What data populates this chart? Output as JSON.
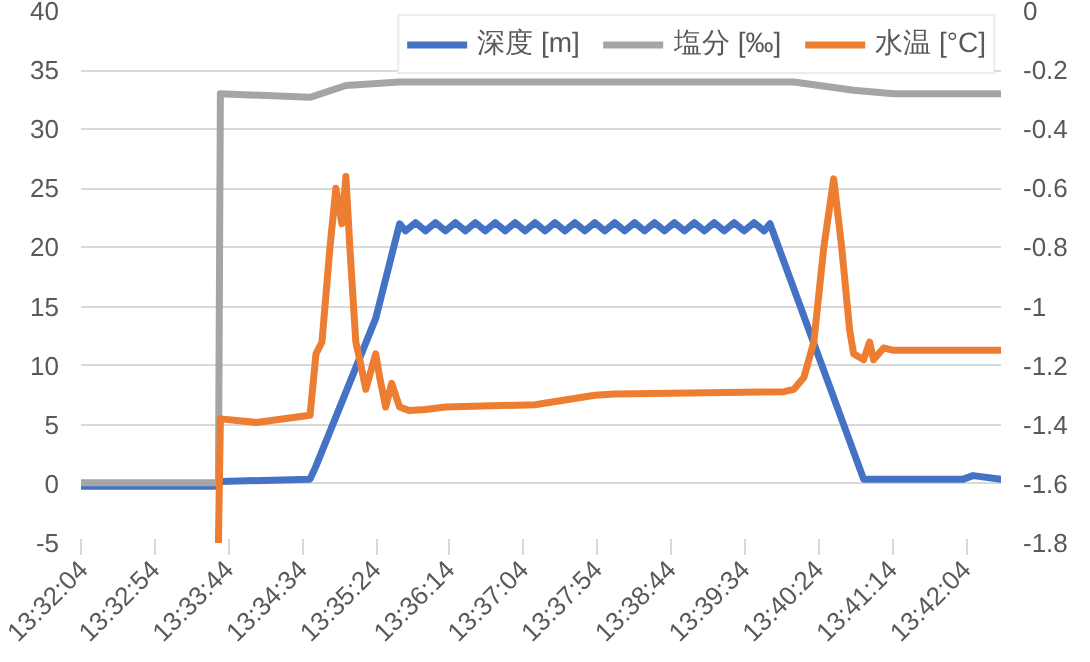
{
  "chart_data": {
    "type": "line",
    "xlim": [
      13.53444,
      13.70769
    ],
    "ylim": [
      -5,
      40
    ],
    "yticks": [
      -5,
      0,
      5,
      10,
      15,
      20,
      25,
      30,
      35,
      40
    ],
    "y2lim": [
      -1.8,
      0
    ],
    "y2ticks": [
      -1.8,
      -1.6,
      -1.4,
      -1.2,
      -1,
      -0.8,
      -0.6,
      -0.4,
      -0.2,
      0
    ],
    "xticks": [
      {
        "value": 13.534444,
        "label": "13:32:04"
      },
      {
        "value": 13.548333,
        "label": "13:32:54"
      },
      {
        "value": 13.562222,
        "label": "13:33:44"
      },
      {
        "value": 13.576111,
        "label": "13:34:34"
      },
      {
        "value": 13.59,
        "label": "13:35:24"
      },
      {
        "value": 13.603889,
        "label": "13:36:14"
      },
      {
        "value": 13.617778,
        "label": "13:37:04"
      },
      {
        "value": 13.631667,
        "label": "13:37:54"
      },
      {
        "value": 13.645556,
        "label": "13:38:44"
      },
      {
        "value": 13.659444,
        "label": "13:39:34"
      },
      {
        "value": 13.673333,
        "label": "13:40:24"
      },
      {
        "value": 13.687222,
        "label": "13:41:14"
      },
      {
        "value": 13.701111,
        "label": "13:42:04"
      }
    ],
    "grid": "y",
    "legend": "top right",
    "line_style": "solid",
    "series": [
      {
        "name": "深度 [m]",
        "color": "#4472c4",
        "x": [
          13.53444,
          13.56032,
          13.56069,
          13.57757,
          13.57869,
          13.58994,
          13.59444,
          13.59557,
          13.59744,
          13.59932,
          13.60119,
          13.60307,
          13.60494,
          13.60682,
          13.60869,
          13.61057,
          13.61244,
          13.61432,
          13.61619,
          13.61807,
          13.61994,
          13.62182,
          13.62369,
          13.62557,
          13.62744,
          13.62932,
          13.63119,
          13.63307,
          13.63494,
          13.63682,
          13.63869,
          13.64057,
          13.64244,
          13.64432,
          13.64619,
          13.64807,
          13.64994,
          13.65182,
          13.65369,
          13.65557,
          13.65744,
          13.65932,
          13.66119,
          13.66307,
          13.66419,
          13.68182,
          13.68369,
          13.70057,
          13.70244,
          13.70769
        ],
        "values": [
          -0.2,
          -0.2,
          0.2,
          0.4,
          1.5,
          14,
          22,
          21.4,
          22.1,
          21.4,
          22.1,
          21.4,
          22.1,
          21.4,
          22.1,
          21.4,
          22.1,
          21.4,
          22.1,
          21.4,
          22.1,
          21.4,
          22.1,
          21.4,
          22.1,
          21.4,
          22.1,
          21.4,
          22.1,
          21.4,
          22.1,
          21.4,
          22.1,
          21.4,
          22.1,
          21.4,
          22.1,
          21.4,
          22.1,
          21.4,
          22.1,
          21.4,
          22.1,
          21.4,
          22,
          0.4,
          0.4,
          0.4,
          0.7,
          0.4
        ]
      },
      {
        "name": "塩分 [‰]",
        "color": "#a5a5a5",
        "x": [
          13.53444,
          13.56032,
          13.56069,
          13.57757,
          13.58432,
          13.59444,
          13.66869,
          13.67994,
          13.68744,
          13.70769
        ],
        "values": [
          0.1,
          0.1,
          33,
          32.7,
          33.7,
          34,
          34,
          33.3,
          33,
          33
        ]
      },
      {
        "name": "水温 [°C]",
        "color": "#ed7d31",
        "x": [
          13.56032,
          13.56069,
          13.56744,
          13.57757,
          13.57869,
          13.57982,
          13.58132,
          13.58244,
          13.58357,
          13.58432,
          13.58507,
          13.58619,
          13.58694,
          13.58807,
          13.58994,
          13.59069,
          13.59182,
          13.59294,
          13.59444,
          13.59632,
          13.59932,
          13.60307,
          13.61994,
          13.63119,
          13.63494,
          13.66682,
          13.66869,
          13.67057,
          13.67244,
          13.67432,
          13.67619,
          13.67769,
          13.67919,
          13.67994,
          13.68182,
          13.68294,
          13.68369,
          13.68557,
          13.68744,
          13.70769
        ],
        "values": [
          -5,
          5.5,
          5.2,
          5.8,
          11,
          12,
          20,
          25,
          22,
          26,
          20,
          12,
          10.5,
          8,
          11,
          9,
          6.5,
          8.5,
          6.5,
          6.2,
          6.3,
          6.5,
          6.7,
          7.5,
          7.6,
          7.8,
          8,
          9,
          12,
          20,
          25.8,
          20,
          13,
          11,
          10.5,
          12,
          10.5,
          11.5,
          11.3,
          11.3
        ]
      }
    ]
  }
}
